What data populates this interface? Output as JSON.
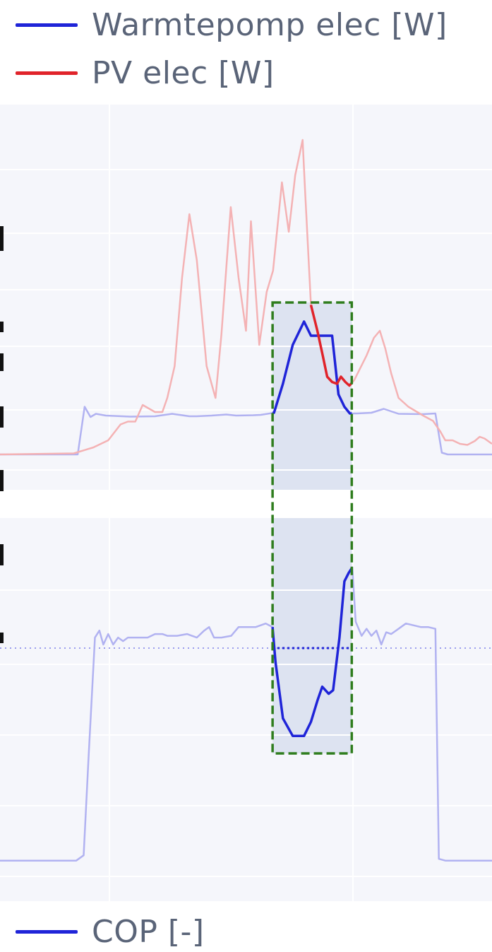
{
  "legend_top": [
    {
      "label": "Warmtepomp elec [W]",
      "color": "#1f24d8"
    },
    {
      "label": "PV elec [W]",
      "color": "#e0232a"
    }
  ],
  "legend_bottom": [
    {
      "label": "COP [-]",
      "color": "#1f24d8"
    }
  ],
  "chart_data": [
    {
      "type": "line",
      "title": "",
      "xlabel": "",
      "ylabel": "",
      "x_range": [
        0,
        100
      ],
      "ylim": [
        0,
        100
      ],
      "grid": true,
      "highlight": {
        "x_start": 55.4,
        "x_end": 71.5,
        "color": "#2f7d1e",
        "style": "dashed"
      },
      "series": [
        {
          "name": "Warmtepomp elec [W]",
          "color": "#1f24d8",
          "points": [
            [
              0,
              5
            ],
            [
              15.8,
              5
            ],
            [
              17.2,
              18.5
            ],
            [
              18.4,
              15.6
            ],
            [
              19.5,
              16.5
            ],
            [
              21.5,
              16.0
            ],
            [
              26.5,
              15.7
            ],
            [
              31.5,
              15.8
            ],
            [
              35,
              16.5
            ],
            [
              38.5,
              15.8
            ],
            [
              40,
              15.8
            ],
            [
              43,
              16.0
            ],
            [
              46,
              16.3
            ],
            [
              48,
              16.0
            ],
            [
              51.5,
              16.1
            ],
            [
              53,
              16.2
            ],
            [
              55.7,
              16.8
            ],
            [
              57.5,
              25
            ],
            [
              59.5,
              36
            ],
            [
              61.8,
              42.6
            ],
            [
              63.2,
              38.6
            ],
            [
              65.4,
              38.6
            ],
            [
              67.5,
              38.6
            ],
            [
              68.8,
              22
            ],
            [
              70,
              18.5
            ],
            [
              71.1,
              16.6
            ],
            [
              72.5,
              16.6
            ],
            [
              75.5,
              16.8
            ],
            [
              78,
              17.9
            ],
            [
              81,
              16.5
            ],
            [
              86,
              16.4
            ],
            [
              88.5,
              16.6
            ],
            [
              89.8,
              5.5
            ],
            [
              91,
              5
            ],
            [
              100,
              5
            ]
          ],
          "highlight_range": [
            55.4,
            71.5
          ]
        },
        {
          "name": "PV elec [W]",
          "color": "#e0232a",
          "points": [
            [
              0,
              5
            ],
            [
              15,
              5.3
            ],
            [
              19,
              7
            ],
            [
              22,
              9
            ],
            [
              24.5,
              13.5
            ],
            [
              26,
              14.3
            ],
            [
              27.5,
              14.3
            ],
            [
              29,
              19
            ],
            [
              31.5,
              17
            ],
            [
              33,
              17
            ],
            [
              34,
              21
            ],
            [
              35.5,
              30
            ],
            [
              37,
              55
            ],
            [
              38.5,
              73
            ],
            [
              40,
              60
            ],
            [
              42,
              30
            ],
            [
              43.8,
              21
            ],
            [
              45,
              39
            ],
            [
              46.9,
              75
            ],
            [
              48.5,
              55
            ],
            [
              50,
              40
            ],
            [
              51,
              71
            ],
            [
              52.7,
              36
            ],
            [
              54.2,
              51
            ],
            [
              55.5,
              57
            ],
            [
              57.3,
              82
            ],
            [
              58.7,
              68
            ],
            [
              60,
              84
            ],
            [
              61.5,
              94
            ],
            [
              62,
              80
            ],
            [
              63.2,
              47.3
            ],
            [
              64.5,
              40
            ],
            [
              65.6,
              33
            ],
            [
              66.5,
              27
            ],
            [
              67.5,
              25.5
            ],
            [
              68.5,
              25
            ],
            [
              69.3,
              27
            ],
            [
              70.2,
              25.5
            ],
            [
              71,
              24.5
            ],
            [
              72,
              26
            ],
            [
              74.5,
              33
            ],
            [
              76,
              38
            ],
            [
              77.2,
              40
            ],
            [
              78.3,
              35
            ],
            [
              79.5,
              28
            ],
            [
              81,
              21
            ],
            [
              83,
              18.5
            ],
            [
              86,
              16
            ],
            [
              88,
              14.5
            ],
            [
              89.5,
              11.5
            ],
            [
              90.5,
              9
            ],
            [
              92,
              9
            ],
            [
              93.5,
              8
            ],
            [
              95,
              7.7
            ],
            [
              96.5,
              8.8
            ],
            [
              97.5,
              10
            ],
            [
              98.5,
              9.5
            ],
            [
              100,
              8
            ]
          ],
          "highlight_range": [
            63.2,
            71.5
          ]
        }
      ]
    },
    {
      "type": "line",
      "title": "",
      "xlabel": "",
      "ylabel": "",
      "x_range": [
        0,
        100
      ],
      "ylim": [
        0,
        100
      ],
      "grid": true,
      "reference_line": {
        "y": 67,
        "style": "dotted",
        "color": "#1f24d8"
      },
      "highlight": {
        "x_start": 55.4,
        "x_end": 71.5,
        "color": "#2f7d1e",
        "style": "dashed"
      },
      "series": [
        {
          "name": "COP [-]",
          "color": "#1f24d8",
          "points": [
            [
              0,
              6.5
            ],
            [
              15.5,
              6.5
            ],
            [
              17,
              8
            ],
            [
              18,
              36
            ],
            [
              19.3,
              70
            ],
            [
              20.2,
              72
            ],
            [
              21,
              68
            ],
            [
              22,
              71
            ],
            [
              23,
              68
            ],
            [
              24,
              70
            ],
            [
              25,
              69
            ],
            [
              26,
              70
            ],
            [
              28,
              70
            ],
            [
              30,
              70
            ],
            [
              31.5,
              71
            ],
            [
              33,
              71
            ],
            [
              34,
              70.5
            ],
            [
              36,
              70.5
            ],
            [
              38,
              71
            ],
            [
              40,
              70
            ],
            [
              41.5,
              72
            ],
            [
              42.5,
              73
            ],
            [
              43.5,
              70
            ],
            [
              45,
              70
            ],
            [
              47,
              70.5
            ],
            [
              48.5,
              73
            ],
            [
              50,
              73
            ],
            [
              52,
              73
            ],
            [
              54,
              74
            ],
            [
              55.4,
              73
            ],
            [
              56,
              63
            ],
            [
              57.5,
              47
            ],
            [
              59.5,
              42
            ],
            [
              61.8,
              42
            ],
            [
              63.2,
              46
            ],
            [
              64.5,
              52
            ],
            [
              65.5,
              56
            ],
            [
              66.8,
              54
            ],
            [
              67.7,
              55
            ],
            [
              69,
              70
            ],
            [
              70,
              86
            ],
            [
              70.9,
              88.5
            ],
            [
              71.6,
              90
            ],
            [
              72.3,
              74.5
            ],
            [
              73.5,
              70.5
            ],
            [
              74.5,
              72.5
            ],
            [
              75.5,
              70.5
            ],
            [
              76.5,
              72
            ],
            [
              77.5,
              68
            ],
            [
              78.5,
              71.5
            ],
            [
              79.5,
              71
            ],
            [
              81,
              72.5
            ],
            [
              82.5,
              74
            ],
            [
              84,
              73.5
            ],
            [
              85.5,
              73
            ],
            [
              87,
              73
            ],
            [
              88.5,
              72.5
            ],
            [
              89.2,
              7
            ],
            [
              90.5,
              6.5
            ],
            [
              100,
              6.5
            ]
          ],
          "highlight_range": [
            55.4,
            71.5
          ]
        }
      ]
    }
  ]
}
